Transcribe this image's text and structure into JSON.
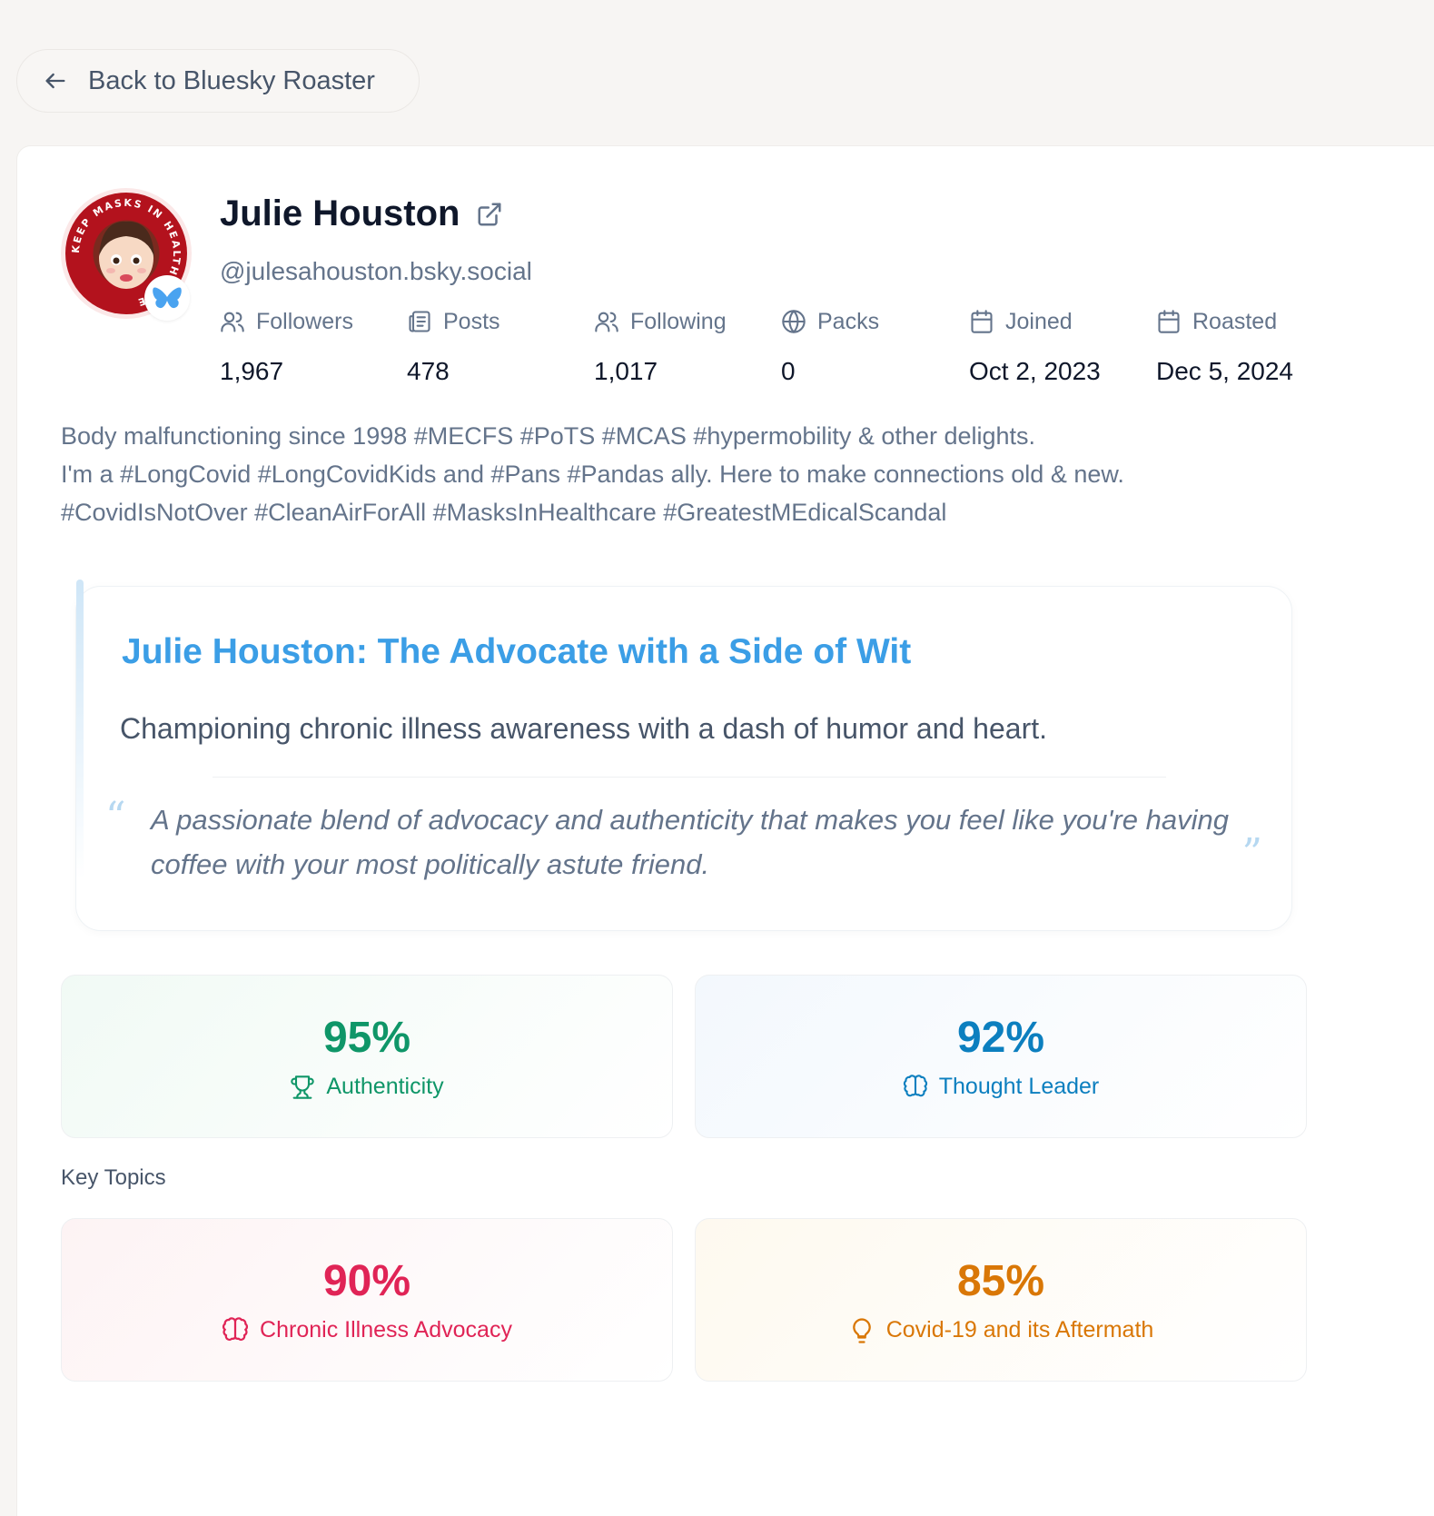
{
  "nav": {
    "back_label": "Back to Bluesky Roaster"
  },
  "profile": {
    "name": "Julie Houston",
    "handle": "@julesahouston.bsky.social",
    "avatar_ring_text": "KEEP MASKS IN HEALTH CARE"
  },
  "stats": [
    {
      "label": "Followers",
      "value": "1,967",
      "icon": "users-icon"
    },
    {
      "label": "Posts",
      "value": "478",
      "icon": "posts-icon"
    },
    {
      "label": "Following",
      "value": "1,017",
      "icon": "users-icon"
    },
    {
      "label": "Packs",
      "value": "0",
      "icon": "globe-icon"
    },
    {
      "label": "Joined",
      "value": "Oct 2, 2023",
      "icon": "calendar-icon"
    },
    {
      "label": "Roasted",
      "value": "Dec 5, 2024",
      "icon": "calendar-icon"
    }
  ],
  "bio": [
    "Body malfunctioning since 1998 #MECFS #PoTS #MCAS #hypermobility & other delights.",
    "I'm a #LongCovid #LongCovidKids and #Pans #Pandas ally. Here to make connections old & new.",
    "#CovidIsNotOver #CleanAirForAll #MasksInHealthcare #GreatestMEdicalScandal"
  ],
  "roast": {
    "title": "Julie Houston: The Advocate with a Side of Wit",
    "subtitle": "Championing chronic illness awareness with a dash of humor and heart.",
    "quote": "A passionate blend of advocacy and authenticity that makes you feel like you're having coffee with your most politically astute friend.",
    "quote_open": "“",
    "quote_close": "”"
  },
  "metrics": [
    {
      "value": "95%",
      "label": "Authenticity",
      "icon": "trophy-icon",
      "color": "#0f9668"
    },
    {
      "value": "92%",
      "label": "Thought Leader",
      "icon": "brain-icon",
      "color": "#0c7fbf"
    }
  ],
  "key_topics_label": "Key Topics",
  "topics": [
    {
      "value": "90%",
      "label": "Chronic Illness Advocacy",
      "icon": "brain-icon",
      "color": "#e02456"
    },
    {
      "value": "85%",
      "label": "Covid-19 and its Aftermath",
      "icon": "lightbulb-icon",
      "color": "#d97706"
    }
  ],
  "colors": {
    "background": "#f7f5f3",
    "title_blue": "#3b9ee6",
    "bluesky_butterfly": "#4aa3f0"
  }
}
